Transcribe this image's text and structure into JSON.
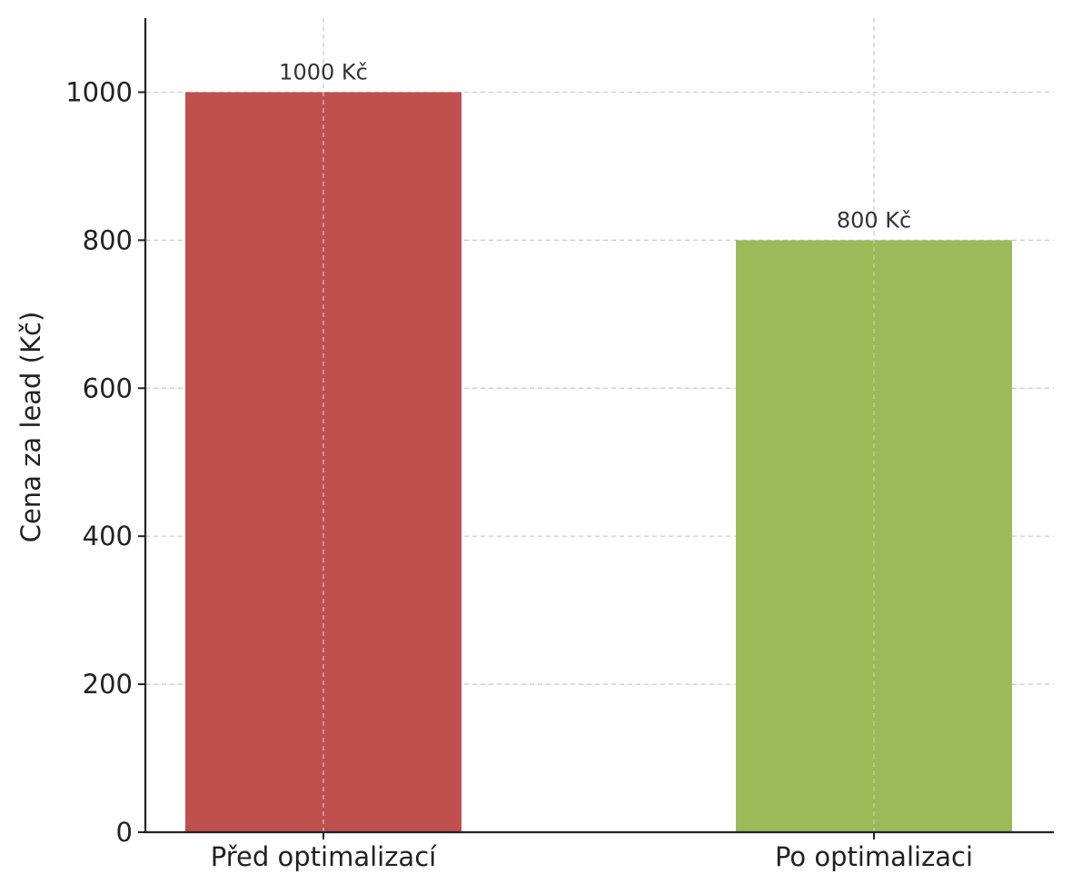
{
  "chart_data": {
    "type": "bar",
    "title": "",
    "xlabel": "",
    "ylabel": "Cena za lead (Kč)",
    "categories": [
      "Před optimalizací",
      "Po optimalizaci"
    ],
    "values": [
      1000,
      800
    ],
    "data_labels": [
      "1000 Kč",
      "800 Kč"
    ],
    "colors": [
      "#c0504d",
      "#9bbb59"
    ],
    "ylim": [
      0,
      1100
    ],
    "yticks": [
      0,
      200,
      400,
      600,
      800,
      1000
    ],
    "grid": true,
    "legend": "none"
  }
}
